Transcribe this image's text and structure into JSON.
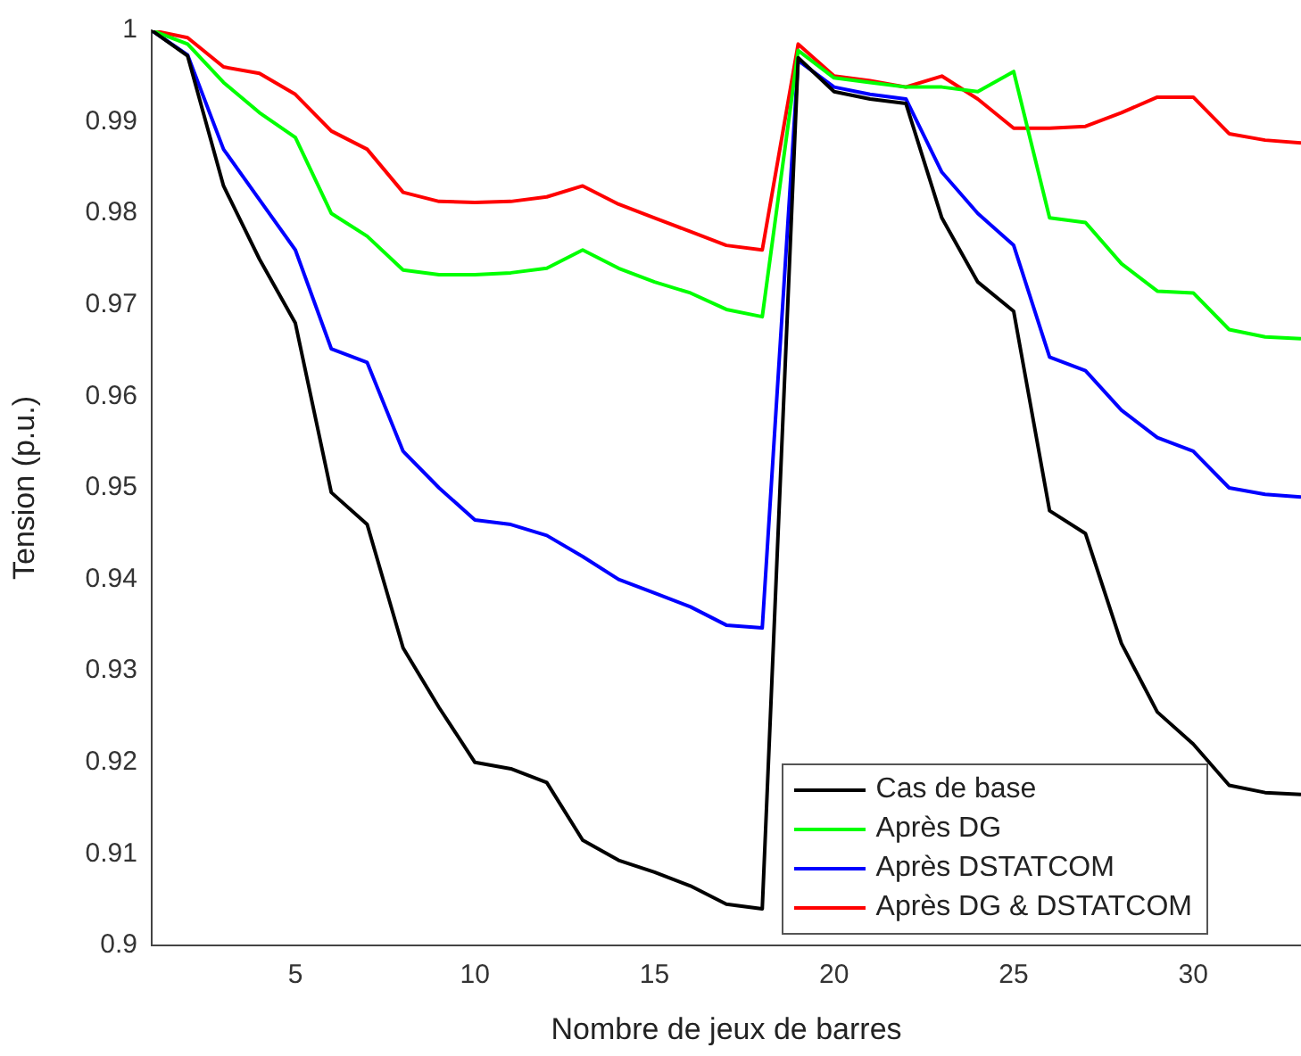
{
  "chart_data": {
    "type": "line",
    "xlabel": "Nombre de jeux de barres",
    "ylabel": "Tension (p.u.)",
    "x": [
      1,
      2,
      3,
      4,
      5,
      6,
      7,
      8,
      9,
      10,
      11,
      12,
      13,
      14,
      15,
      16,
      17,
      18,
      19,
      20,
      21,
      22,
      23,
      24,
      25,
      26,
      27,
      28,
      29,
      30,
      31,
      32,
      33
    ],
    "series": [
      {
        "name": "Cas de base",
        "color": "#000000",
        "values": [
          1.0,
          0.9972,
          0.983,
          0.975,
          0.968,
          0.9495,
          0.946,
          0.9325,
          0.926,
          0.92,
          0.9193,
          0.9178,
          0.9115,
          0.9093,
          0.908,
          0.9065,
          0.9045,
          0.904,
          0.997,
          0.9933,
          0.9925,
          0.992,
          0.9795,
          0.9725,
          0.9693,
          0.9475,
          0.945,
          0.933,
          0.9255,
          0.922,
          0.9175,
          0.9167,
          0.9165
        ]
      },
      {
        "name": "Après DG",
        "color": "#00ff00",
        "values": [
          1.0,
          0.9985,
          0.9943,
          0.991,
          0.9883,
          0.98,
          0.9775,
          0.9738,
          0.9733,
          0.9733,
          0.9735,
          0.974,
          0.976,
          0.974,
          0.9725,
          0.9713,
          0.9695,
          0.9687,
          0.9978,
          0.9948,
          0.9943,
          0.9938,
          0.9938,
          0.9933,
          0.9955,
          0.9795,
          0.979,
          0.9745,
          0.9715,
          0.9713,
          0.9673,
          0.9665,
          0.9663
        ]
      },
      {
        "name": "Après DSTATCOM",
        "color": "#0000ff",
        "values": [
          1.0,
          0.9973,
          0.987,
          0.9815,
          0.976,
          0.9652,
          0.9637,
          0.954,
          0.95,
          0.9465,
          0.946,
          0.9448,
          0.9425,
          0.94,
          0.9385,
          0.937,
          0.935,
          0.9347,
          0.9967,
          0.9938,
          0.993,
          0.9925,
          0.9845,
          0.98,
          0.9765,
          0.9643,
          0.9628,
          0.9585,
          0.9555,
          0.954,
          0.95,
          0.9493,
          0.949
        ]
      },
      {
        "name": "Après DG & DSTATCOM",
        "color": "#ff0000",
        "values": [
          1.0,
          0.9992,
          0.996,
          0.9953,
          0.993,
          0.989,
          0.987,
          0.9823,
          0.9813,
          0.9812,
          0.9813,
          0.9818,
          0.983,
          0.981,
          0.9795,
          0.978,
          0.9765,
          0.976,
          0.9985,
          0.995,
          0.9945,
          0.9938,
          0.995,
          0.9925,
          0.9893,
          0.9893,
          0.9895,
          0.991,
          0.9927,
          0.9927,
          0.9887,
          0.988,
          0.9877
        ]
      }
    ],
    "xlim": [
      1,
      33
    ],
    "xticks": [
      5,
      10,
      15,
      20,
      25,
      30
    ],
    "ylim": [
      0.9,
      1
    ],
    "yticks": [
      0.9,
      0.91,
      0.92,
      0.93,
      0.94,
      0.95,
      0.96,
      0.97,
      0.98,
      0.99,
      1
    ],
    "legend": "bottom right",
    "marker": "none",
    "line_style": "solid"
  }
}
